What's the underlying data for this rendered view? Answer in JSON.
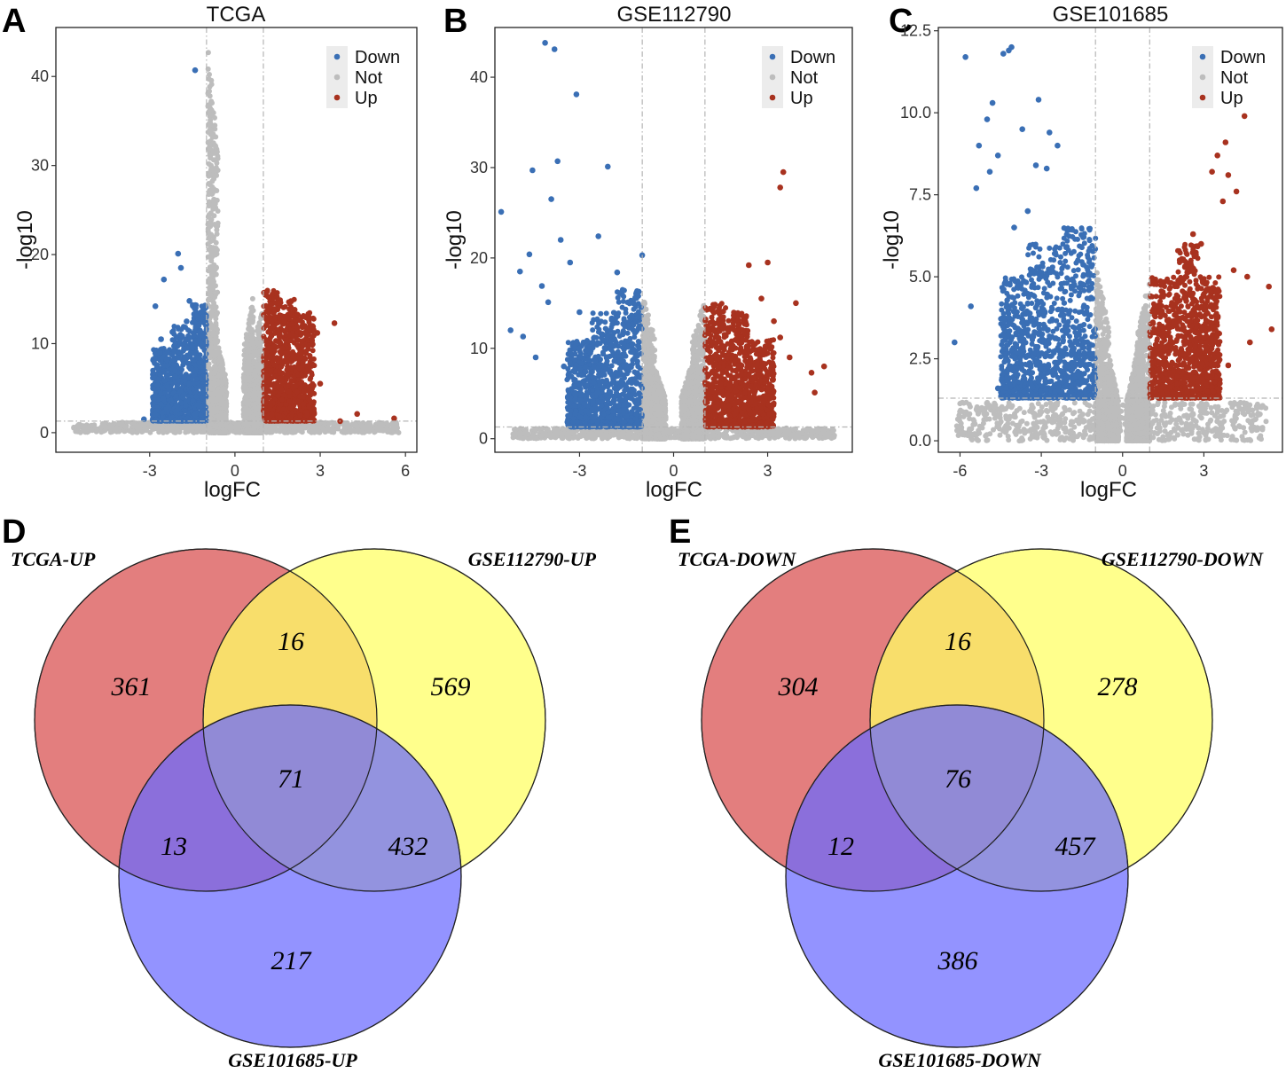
{
  "colors": {
    "down": "#3a6fb5",
    "not": "#bdbdbd",
    "up": "#a8321f",
    "venn_a": "#e07070",
    "venn_b": "#ffff66",
    "venn_c": "#6a6aff"
  },
  "chart_data": [
    {
      "type": "scatter",
      "letter": "A",
      "title": "TCGA",
      "xlabel": "logFC",
      "ylabel": "-log10",
      "xlim": [
        -6.3,
        6.4
      ],
      "ylim": [
        -2.2,
        45.5
      ],
      "xticks": [
        -3,
        0,
        3,
        6
      ],
      "yticks": [
        0,
        10,
        20,
        30,
        40
      ],
      "ytick_labels": [
        "0",
        "10",
        "20",
        "30",
        "40"
      ],
      "fc_cut": 1,
      "p_line": 1.3,
      "grid": false,
      "legend": {
        "placement": "top-right",
        "entries": [
          "Down",
          "Not",
          "Up"
        ]
      },
      "series": [
        {
          "name": "Down",
          "points": [
            [
              -2.8,
              14.2
            ],
            [
              -2.5,
              17.2
            ],
            [
              -2.0,
              20.1
            ],
            [
              -1.9,
              18.5
            ],
            [
              -1.6,
              14.8
            ],
            [
              -2.6,
              10.5
            ],
            [
              -2.2,
              11.3
            ],
            [
              -1.4,
              40.7
            ],
            [
              -1.7,
              12.5
            ],
            [
              -2.4,
              8.2
            ],
            [
              -2.1,
              6.3
            ],
            [
              -1.5,
              9.7
            ],
            [
              -1.2,
              13.5
            ],
            [
              -1.8,
              4.2
            ],
            [
              -1.3,
              3.1
            ],
            [
              -1.1,
              7.4
            ],
            [
              -3.2,
              1.5
            ],
            [
              -2.0,
              2.6
            ],
            [
              -1.6,
              5.5
            ],
            [
              -1.4,
              2.0
            ]
          ]
        },
        {
          "name": "Up",
          "points": [
            [
              1.2,
              15.2
            ],
            [
              1.6,
              14.6
            ],
            [
              2.1,
              13.8
            ],
            [
              2.6,
              13.0
            ],
            [
              3.5,
              12.3
            ],
            [
              2.9,
              11.2
            ],
            [
              1.8,
              10.4
            ],
            [
              2.3,
              9.0
            ],
            [
              1.4,
              8.3
            ],
            [
              2.7,
              7.5
            ],
            [
              1.1,
              6.4
            ],
            [
              3.0,
              5.5
            ],
            [
              1.9,
              4.6
            ],
            [
              2.4,
              3.2
            ],
            [
              1.3,
              2.1
            ],
            [
              4.3,
              2.1
            ],
            [
              5.6,
              1.6
            ],
            [
              3.7,
              1.3
            ]
          ]
        }
      ],
      "bands": {
        "not_spikes": [
          [
            -0.95,
            -0.6,
            43.8
          ],
          [
            -0.6,
            -0.3,
            10.0
          ],
          [
            0.3,
            0.65,
            15.5
          ],
          [
            0.65,
            0.95,
            13.5
          ]
        ],
        "down_band": [
          [
            -2.9,
            -2.2,
            9.5
          ],
          [
            -2.2,
            -1.5,
            12.0
          ],
          [
            -1.5,
            -1.0,
            14.5
          ]
        ],
        "up_band": [
          [
            1.0,
            1.5,
            16.0
          ],
          [
            1.5,
            2.1,
            15.0
          ],
          [
            2.1,
            2.8,
            13.5
          ]
        ]
      }
    },
    {
      "type": "scatter",
      "letter": "B",
      "title": "GSE112790",
      "xlabel": "logFC",
      "ylabel": "-log10",
      "xlim": [
        -5.7,
        5.7
      ],
      "ylim": [
        -1.5,
        45.5
      ],
      "xticks": [
        -3,
        0,
        3
      ],
      "yticks": [
        0,
        10,
        20,
        30,
        40
      ],
      "ytick_labels": [
        "0",
        "10",
        "20",
        "30",
        "40"
      ],
      "fc_cut": 1,
      "p_line": 1.3,
      "grid": false,
      "legend": {
        "placement": "top-right",
        "entries": [
          "Down",
          "Not",
          "Up"
        ]
      },
      "series": [
        {
          "name": "Down",
          "points": [
            [
              -4.1,
              43.8
            ],
            [
              -3.8,
              43.1
            ],
            [
              -3.1,
              38.1
            ],
            [
              -3.7,
              30.7
            ],
            [
              -4.5,
              29.7
            ],
            [
              -2.1,
              30.1
            ],
            [
              -5.5,
              25.1
            ],
            [
              -3.9,
              26.5
            ],
            [
              -4.6,
              20.4
            ],
            [
              -5.2,
              12.0
            ],
            [
              -4.8,
              11.3
            ],
            [
              -3.6,
              22.0
            ],
            [
              -2.4,
              22.4
            ],
            [
              -4.2,
              16.9
            ],
            [
              -3.3,
              19.5
            ],
            [
              -1.0,
              20.3
            ],
            [
              -4.0,
              15.1
            ],
            [
              -3.0,
              14.0
            ],
            [
              -4.4,
              9.0
            ],
            [
              -3.5,
              8.0
            ],
            [
              -1.8,
              18.4
            ],
            [
              -4.9,
              18.5
            ]
          ]
        },
        {
          "name": "Up",
          "points": [
            [
              3.5,
              29.5
            ],
            [
              3.4,
              27.8
            ],
            [
              4.8,
              8.0
            ],
            [
              4.4,
              7.3
            ],
            [
              4.5,
              5.1
            ],
            [
              3.0,
              19.5
            ],
            [
              2.4,
              19.2
            ],
            [
              3.9,
              15.0
            ],
            [
              3.2,
              13.0
            ],
            [
              2.8,
              15.5
            ],
            [
              3.4,
              11.2
            ],
            [
              2.2,
              12.0
            ],
            [
              1.5,
              14.0
            ],
            [
              2.6,
              10.5
            ],
            [
              3.7,
              9.0
            ]
          ]
        }
      ],
      "bands": {
        "not_spikes": [
          [
            -1.0,
            -0.6,
            16.0
          ],
          [
            -0.6,
            -0.25,
            8.0
          ],
          [
            0.25,
            0.6,
            8.5
          ],
          [
            0.6,
            1.0,
            15.5
          ]
        ],
        "down_band": [
          [
            -3.4,
            -2.6,
            11.0
          ],
          [
            -2.6,
            -1.8,
            14.0
          ],
          [
            -1.8,
            -1.0,
            16.5
          ]
        ],
        "up_band": [
          [
            1.0,
            1.7,
            15.0
          ],
          [
            1.7,
            2.4,
            14.0
          ],
          [
            2.4,
            3.2,
            11.0
          ]
        ]
      }
    },
    {
      "type": "scatter",
      "letter": "C",
      "title": "GSE101685",
      "xlabel": "logFC",
      "ylabel": "-log10",
      "xlim": [
        -6.8,
        5.9
      ],
      "ylim": [
        -0.35,
        12.6
      ],
      "xticks": [
        -6,
        -3,
        0,
        3
      ],
      "yticks": [
        0,
        2.5,
        5,
        7.5,
        10,
        12.5
      ],
      "ytick_labels": [
        "0.0",
        "2.5",
        "5.0",
        "7.5",
        "10.0",
        "12.5"
      ],
      "fc_cut": 1,
      "p_line": 1.3,
      "grid": false,
      "legend": {
        "placement": "top-right",
        "entries": [
          "Down",
          "Not",
          "Up"
        ]
      },
      "series": [
        {
          "name": "Down",
          "points": [
            [
              -5.8,
              11.7
            ],
            [
              -4.4,
              11.8
            ],
            [
              -4.2,
              11.9
            ],
            [
              -4.1,
              12.0
            ],
            [
              -4.8,
              10.3
            ],
            [
              -3.1,
              10.4
            ],
            [
              -5.0,
              9.8
            ],
            [
              -4.6,
              8.7
            ],
            [
              -5.3,
              9.0
            ],
            [
              -3.7,
              9.5
            ],
            [
              -2.7,
              9.4
            ],
            [
              -2.4,
              9.0
            ],
            [
              -3.2,
              8.4
            ],
            [
              -4.9,
              8.2
            ],
            [
              -5.4,
              7.7
            ],
            [
              -5.6,
              4.1
            ],
            [
              -6.2,
              3.0
            ],
            [
              -4.3,
              2.5
            ],
            [
              -4.6,
              1.6
            ],
            [
              -2.8,
              8.3
            ],
            [
              -3.5,
              7.0
            ],
            [
              -4.0,
              6.5
            ]
          ]
        },
        {
          "name": "Up",
          "points": [
            [
              4.5,
              9.9
            ],
            [
              3.8,
              9.1
            ],
            [
              3.5,
              8.7
            ],
            [
              3.9,
              8.1
            ],
            [
              3.3,
              8.2
            ],
            [
              3.7,
              7.3
            ],
            [
              4.2,
              7.6
            ],
            [
              4.1,
              5.2
            ],
            [
              4.6,
              5.0
            ],
            [
              5.4,
              4.7
            ],
            [
              5.5,
              3.4
            ],
            [
              4.7,
              3.0
            ],
            [
              3.9,
              2.3
            ],
            [
              3.4,
              2.3
            ],
            [
              2.6,
              6.3
            ],
            [
              2.2,
              5.5
            ],
            [
              2.9,
              6.0
            ]
          ]
        }
      ],
      "bands": {
        "not_spikes": [
          [
            -1.0,
            -0.5,
            5.5
          ],
          [
            -0.5,
            -0.15,
            2.6
          ],
          [
            0.15,
            0.5,
            2.6
          ],
          [
            0.5,
            1.0,
            5.0
          ]
        ],
        "down_band": [
          [
            -4.5,
            -3.5,
            5.0
          ],
          [
            -3.5,
            -2.2,
            6.0
          ],
          [
            -2.2,
            -1.0,
            6.5
          ]
        ],
        "up_band": [
          [
            1.0,
            2.0,
            5.0
          ],
          [
            2.0,
            2.8,
            6.0
          ],
          [
            2.8,
            3.6,
            5.0
          ]
        ]
      }
    }
  ],
  "venns": [
    {
      "letter": "D",
      "sets": [
        "TCGA-UP",
        "GSE112790-UP",
        "GSE101685-UP"
      ],
      "counts": {
        "a": "361",
        "ab": "16",
        "b": "569",
        "abc": "71",
        "ac": "13",
        "bc": "432",
        "c": "217"
      }
    },
    {
      "letter": "E",
      "sets": [
        "TCGA-DOWN",
        "GSE112790-DOWN",
        "GSE101685-DOWN"
      ],
      "counts": {
        "a": "304",
        "ab": "16",
        "b": "278",
        "abc": "76",
        "ac": "12",
        "bc": "457",
        "c": "386"
      }
    }
  ]
}
